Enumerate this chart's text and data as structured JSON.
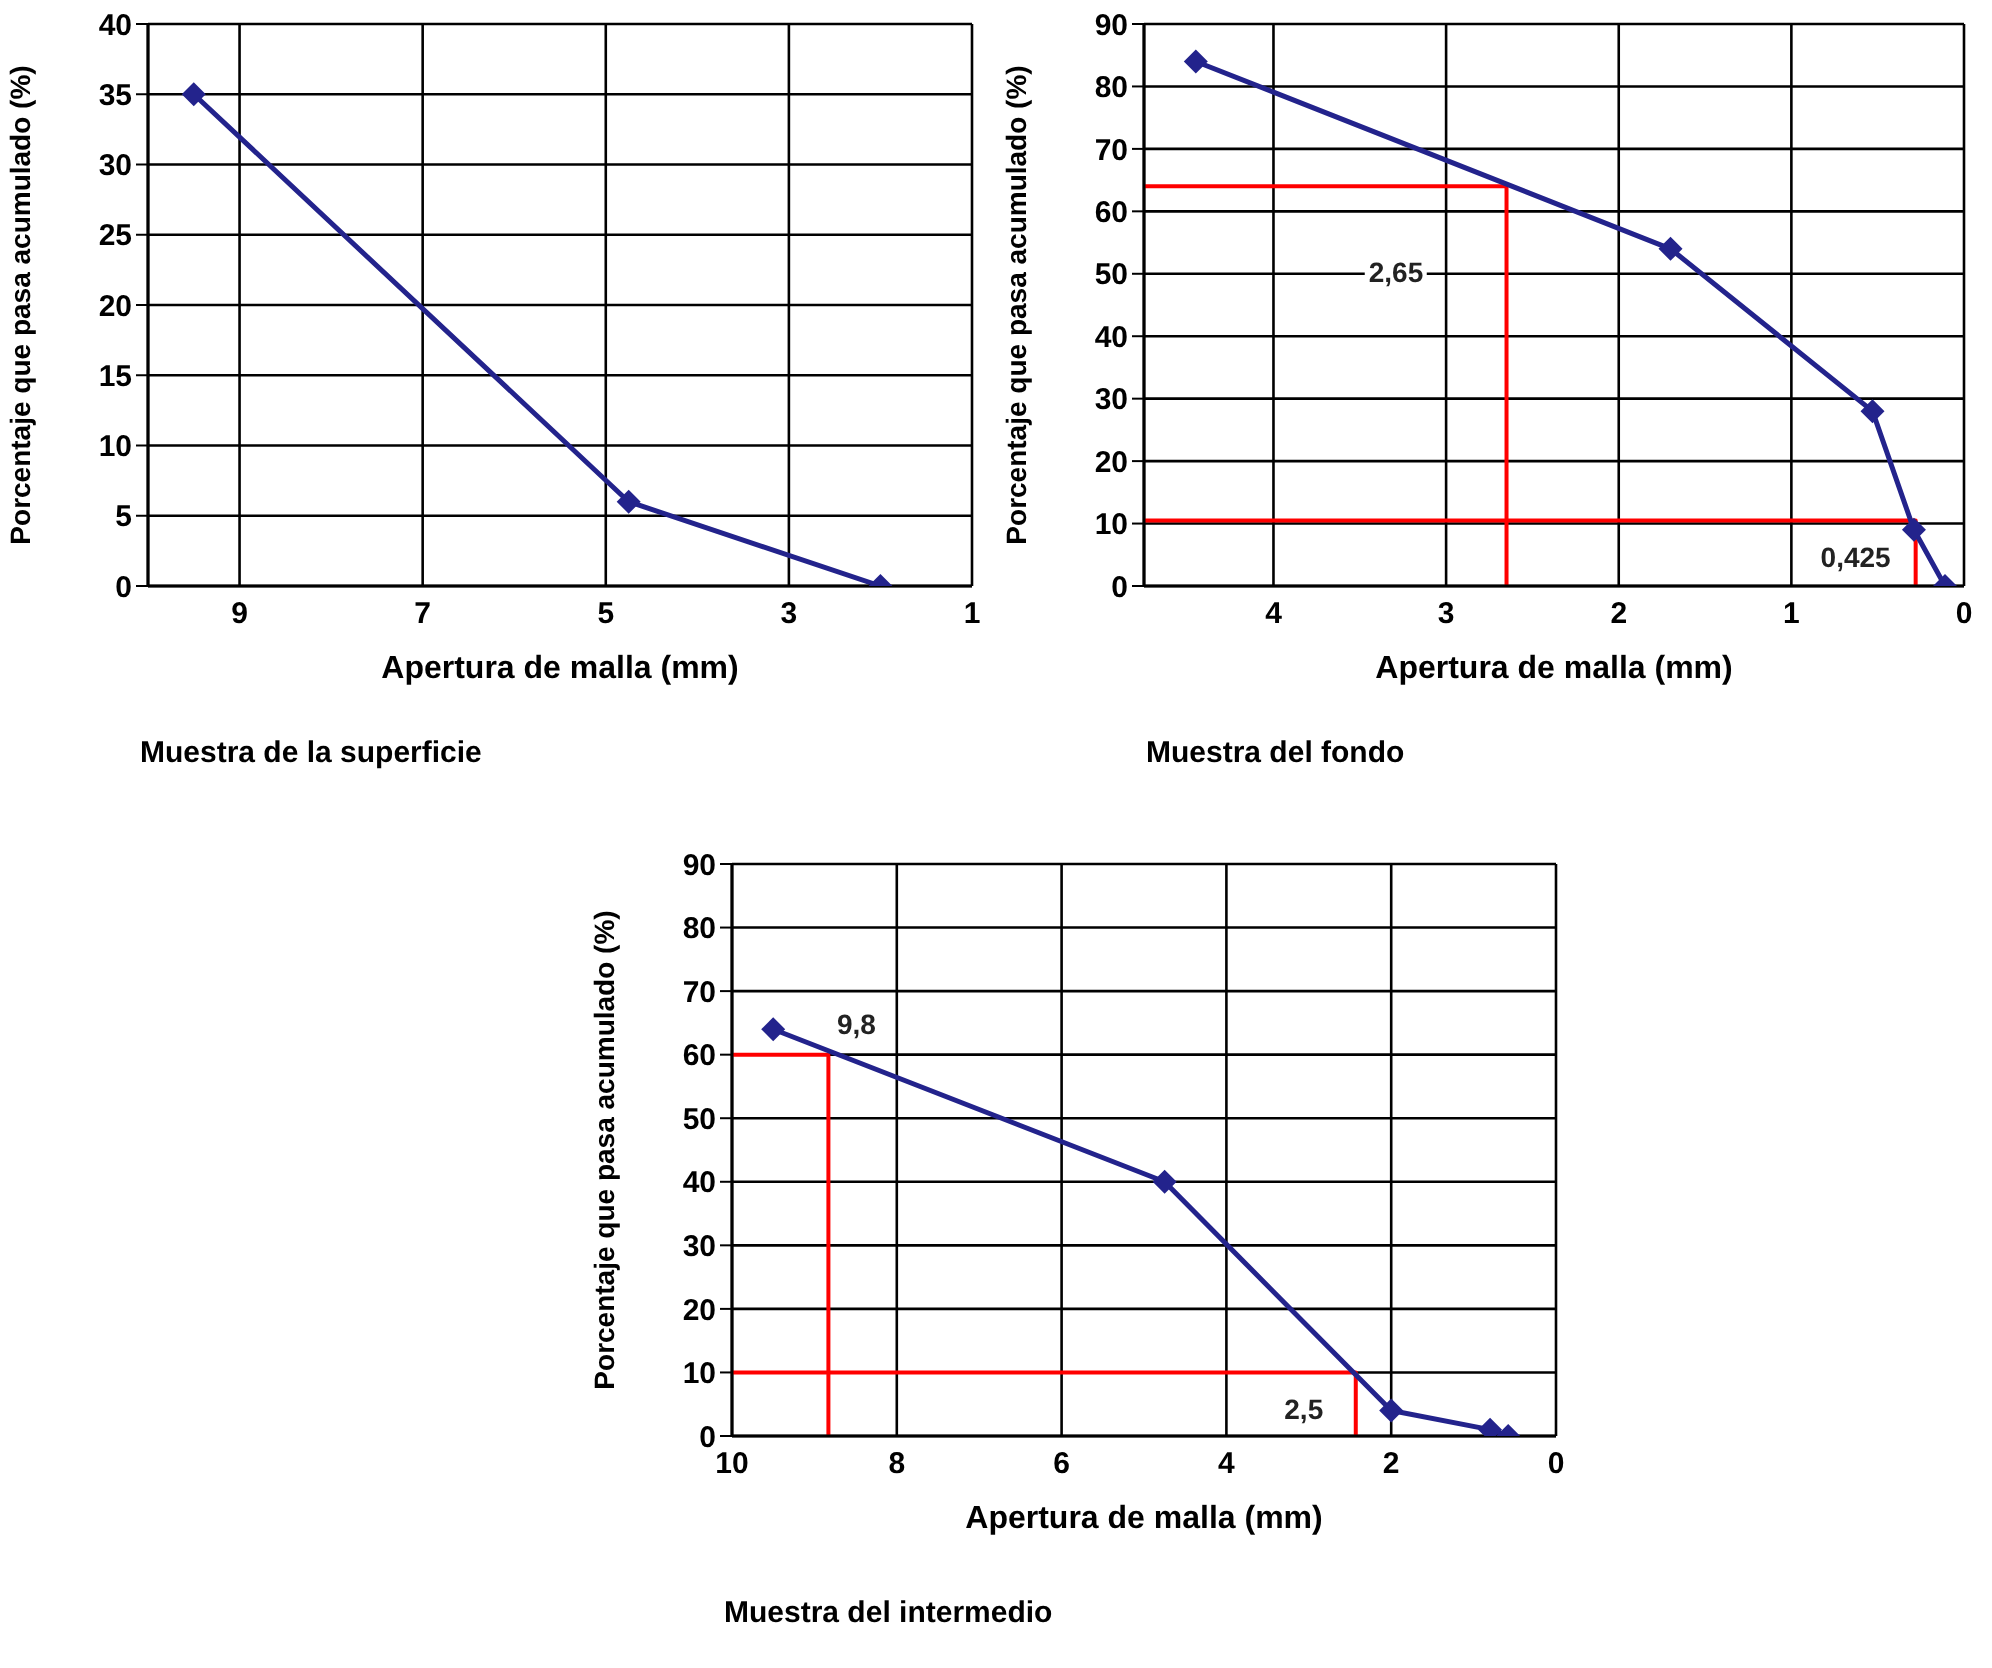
{
  "chart_data": [
    {
      "type": "line",
      "title": "Muestra de la superficie",
      "xlabel": "Apertura de malla (mm)",
      "ylabel": "Porcentaje que pasa acumulado (%)",
      "xlim": [
        10,
        1
      ],
      "xticks": [
        9,
        7,
        5,
        3,
        1
      ],
      "ylim": [
        0,
        40
      ],
      "yticks": [
        0,
        5,
        10,
        15,
        20,
        25,
        30,
        35,
        40
      ],
      "grid": true,
      "marker": "diamond",
      "line_style": "solid",
      "series": [
        {
          "color": "#23238c",
          "x": [
            9.5,
            4.75,
            2.0
          ],
          "values": [
            35,
            6,
            0
          ]
        }
      ]
    },
    {
      "type": "line",
      "title": "Muestra del fondo",
      "xlabel": "Apertura de malla (mm)",
      "ylabel": "Porcentaje que pasa acumulado (%)",
      "xlim": [
        4.75,
        0
      ],
      "xticks": [
        4,
        3,
        2,
        1,
        0
      ],
      "ylim": [
        0,
        90
      ],
      "yticks": [
        0,
        10,
        20,
        30,
        40,
        50,
        60,
        70,
        80,
        90
      ],
      "grid": true,
      "marker": "diamond",
      "line_style": "solid",
      "series": [
        {
          "color": "#ff0000",
          "marker": "none",
          "x": [
            4.75,
            2.65,
            2.65
          ],
          "values": [
            64,
            64,
            0
          ]
        },
        {
          "color": "#ff0000",
          "marker": "none",
          "x": [
            4.75,
            0.28,
            0.28
          ],
          "values": [
            10.5,
            10.5,
            0
          ]
        },
        {
          "color": "#23238c",
          "x": [
            4.45,
            1.7,
            0.53,
            0.29,
            0.11
          ],
          "values": [
            84,
            54,
            28,
            9,
            0
          ]
        }
      ],
      "annotations": [
        "2,65",
        {
          "text": "0,425",
          "x": 0.28,
          "y": 0
        }
      ]
    },
    {
      "type": "line",
      "title": "Muestra del intermedio",
      "xlabel": "Apertura de malla (mm)",
      "ylabel": "Porcentaje que pasa acumulado (%)",
      "xlim": [
        10,
        0
      ],
      "xticks": [
        10,
        8,
        6,
        4,
        2,
        0
      ],
      "ylim": [
        0,
        90
      ],
      "yticks": [
        0,
        10,
        20,
        30,
        40,
        50,
        60,
        70,
        80,
        90
      ],
      "grid": true,
      "marker": "diamond",
      "line_style": "solid",
      "series": [
        {
          "color": "#ff0000",
          "marker": "none",
          "x": [
            10,
            8.83,
            8.83
          ],
          "values": [
            60,
            60,
            0
          ]
        },
        {
          "color": "#ff0000",
          "marker": "none",
          "x": [
            10,
            2.43,
            2.43
          ],
          "values": [
            10,
            10,
            0
          ]
        },
        {
          "color": "#23238c",
          "x": [
            9.5,
            4.75,
            2.0,
            0.8,
            0.58
          ],
          "values": [
            64,
            40,
            4,
            1,
            0
          ]
        }
      ],
      "annotations": [
        {
          "text": "9,8",
          "x": 8.83,
          "y": 60
        },
        {
          "text": "2,5",
          "x": 2.43,
          "y": 0
        }
      ]
    }
  ]
}
